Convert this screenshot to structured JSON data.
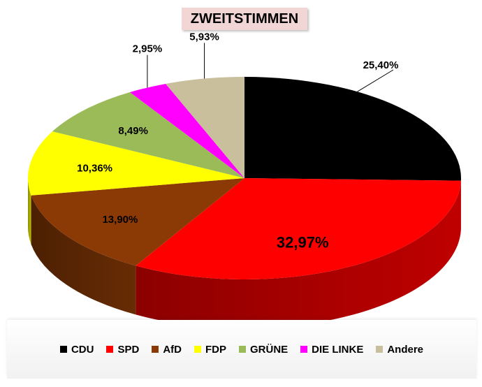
{
  "chart_data": {
    "type": "pie",
    "title": "ZWEITSTIMMEN",
    "slices": [
      {
        "label": "CDU",
        "value": 25.4,
        "display": "25,40%",
        "color": "#000000"
      },
      {
        "label": "SPD",
        "value": 32.97,
        "display": "32,97%",
        "color": "#ff0000"
      },
      {
        "label": "AfD",
        "value": 13.9,
        "display": "13,90%",
        "color": "#8b3a05"
      },
      {
        "label": "FDP",
        "value": 10.36,
        "display": "10,36%",
        "color": "#ffff00"
      },
      {
        "label": "GRÜNE",
        "value": 8.49,
        "display": "8,49%",
        "color": "#9bbb59"
      },
      {
        "label": "DIE LINKE",
        "value": 2.95,
        "display": "2,95%",
        "color": "#ff00ff"
      },
      {
        "label": "Andere",
        "value": 5.93,
        "display": "5,93%",
        "color": "#c9bf9c"
      }
    ],
    "legend_position": "bottom"
  }
}
